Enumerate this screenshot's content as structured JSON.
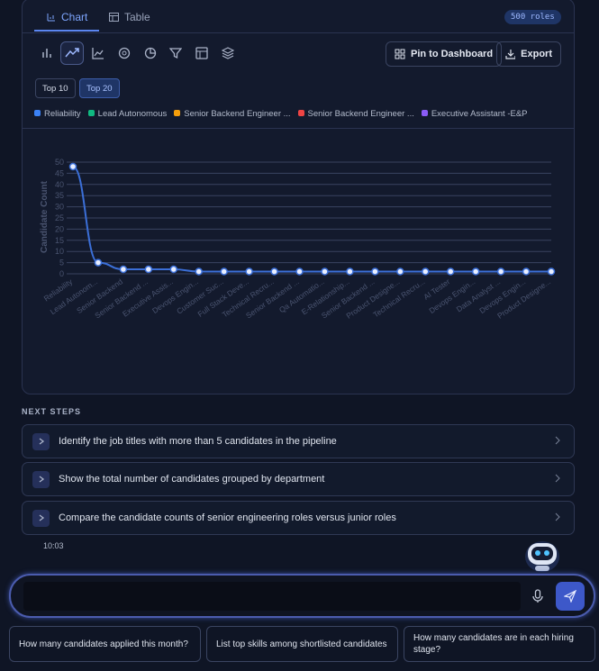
{
  "tabs": [
    "Chart",
    "Table"
  ],
  "badge": "500 roles",
  "buttons": {
    "pin": "Pin to Dashboard",
    "export": "Export"
  },
  "toggles": [
    "Top 10",
    "Top 20"
  ],
  "chart_data": {
    "type": "line",
    "y_label": "Candidate Count",
    "legend": [
      {
        "name": "Reliability",
        "color": "#3b82f6"
      },
      {
        "name": "Lead Autonomous",
        "color": "#10b981"
      },
      {
        "name": "Senior Backend Engineer ...",
        "color": "#f59e0b"
      },
      {
        "name": "Senior Backend Engineer ...",
        "color": "#ef4444"
      },
      {
        "name": "Executive Assistant -E&P",
        "color": "#8b5cf6"
      }
    ],
    "categories": [
      "Reliability",
      "Lead Autonom...",
      "Senior Backend",
      "Senior Backend ...",
      "Executive Assis...",
      "Devops Engin...",
      "Customer Suc...",
      "Full Stack Deve...",
      "Technical Recru...",
      "Senior Backend ...",
      "Qa Automatio...",
      "E-Relationship...",
      "Senior Backend ...",
      "Product Designe...",
      "Technical Recru...",
      "AI Tester",
      "Devops Engin...",
      "Data Analyst ...",
      "Devops Engin...",
      "Product Designe..."
    ],
    "series": [
      {
        "color": "#3b6fd8",
        "values": [
          48,
          5,
          2,
          2,
          2,
          1,
          1,
          1,
          1,
          1,
          1,
          1,
          1,
          1,
          1,
          1,
          1,
          1,
          1,
          1
        ]
      }
    ],
    "ylim": [
      0,
      50
    ],
    "yticks": [
      0,
      5,
      10,
      15,
      20,
      25,
      30,
      35,
      40,
      45,
      50
    ],
    "grid": true
  },
  "next_steps": {
    "title": "NEXT STEPS",
    "items": [
      "Identify the job titles with more than 5 candidates in the pipeline",
      "Show the total number of candidates grouped by department",
      "Compare the candidate counts of senior engineering roles versus junior roles"
    ]
  },
  "timestamp": "10:03",
  "suggestions": [
    "How many candidates applied this month?",
    "List top skills among shortlisted candidates",
    "How many candidates are in each hiring stage?"
  ]
}
